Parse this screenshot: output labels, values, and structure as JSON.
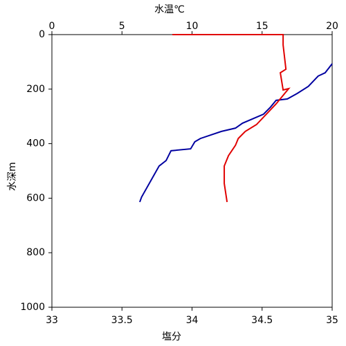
{
  "chart_data": {
    "type": "line",
    "x_label": "塩分",
    "x2_label": "水温℃",
    "y_label": "水深m",
    "x_label_color": "#e00000",
    "x2_label_color": "#0000a0",
    "xlim": [
      33,
      35
    ],
    "xticks": [
      33,
      33.5,
      34,
      34.5,
      35
    ],
    "x2lim": [
      0,
      20
    ],
    "x2ticks": [
      0,
      5,
      10,
      15,
      20
    ],
    "ylim": [
      0,
      1000
    ],
    "yticks": [
      0,
      200,
      400,
      600,
      800,
      1000
    ],
    "y_inverted": true,
    "series": [
      {
        "color": "#0000a0",
        "axis": "x2",
        "x": [
          6.27,
          6.4,
          7.65,
          8.15,
          8.5,
          9.9,
          10.2,
          10.6,
          12.1,
          13.1,
          13.6,
          15.1,
          15.6,
          16,
          16.8,
          17.5,
          18.3,
          19,
          19.5,
          20
        ],
        "values": [
          614,
          596,
          482,
          462,
          426,
          419,
          393,
          381,
          355,
          343,
          325,
          292,
          266,
          241,
          236,
          216,
          190,
          152,
          140,
          107
        ]
      },
      {
        "color": "#e00000",
        "axis": "x",
        "x": [
          33.86,
          34.65,
          34.65,
          34.67,
          34.63,
          34.65,
          34.69,
          34.6,
          34.53,
          34.46,
          34.38,
          34.33,
          34.31,
          34.26,
          34.23,
          34.23,
          34.25
        ],
        "values": [
          0,
          0,
          38,
          127,
          140,
          203,
          198,
          254,
          292,
          330,
          355,
          381,
          406,
          444,
          482,
          546,
          614
        ]
      }
    ]
  }
}
